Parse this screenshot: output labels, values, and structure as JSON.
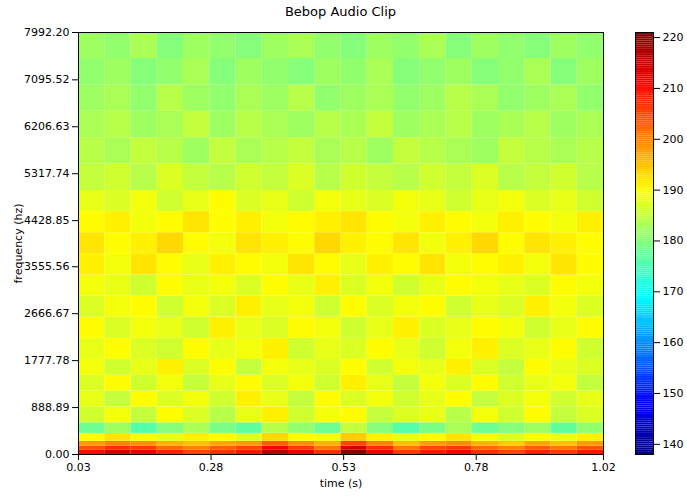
{
  "chart_data": {
    "type": "heatmap",
    "title": "Bebop Audio Clip",
    "x_label": "time (s)",
    "y_label": "frequency (hz)",
    "xlim": [
      0.03,
      1.02
    ],
    "xticks": [
      0.03,
      0.28,
      0.53,
      0.78,
      1.02
    ],
    "ylim": [
      0,
      7992.2
    ],
    "yticks": [
      {
        "value": 0,
        "label": "0.00"
      },
      888.89,
      1777.78,
      2666.67,
      3555.56,
      4428.85,
      5317.74,
      6206.63,
      7095.52,
      {
        "value": 7992.2,
        "label": "7992.20"
      }
    ],
    "time_bins": [
      0.03,
      0.0795,
      0.129,
      0.1785,
      0.228,
      0.2775,
      0.327,
      0.3765,
      0.426,
      0.4755,
      0.525,
      0.5745,
      0.624,
      0.6735,
      0.723,
      0.7725,
      0.822,
      0.8715,
      0.921,
      0.9705,
      1.02
    ],
    "freq_bins": [
      0,
      80,
      160,
      250,
      400,
      600,
      900,
      1200,
      1500,
      1800,
      2200,
      2600,
      3000,
      3400,
      3800,
      4200,
      4600,
      5000,
      5500,
      6000,
      6500,
      7000,
      7500,
      7992.2
    ],
    "cells": [
      [
        210,
        214,
        212,
        208,
        205,
        207,
        209,
        216,
        212,
        207,
        220,
        212,
        206,
        209,
        211,
        207,
        205,
        208,
        206,
        209
      ],
      [
        204,
        207,
        206,
        202,
        200,
        203,
        205,
        211,
        206,
        201,
        214,
        207,
        201,
        205,
        206,
        202,
        200,
        203,
        201,
        204
      ],
      [
        198,
        200,
        199,
        196,
        195,
        197,
        198,
        203,
        199,
        196,
        205,
        200,
        195,
        198,
        199,
        196,
        194,
        197,
        195,
        198
      ],
      [
        190,
        192,
        189,
        188,
        191,
        190,
        187,
        193,
        190,
        189,
        194,
        191,
        188,
        190,
        192,
        189,
        187,
        190,
        188,
        191
      ],
      [
        178,
        182,
        176,
        180,
        183,
        179,
        177,
        184,
        181,
        178,
        185,
        180,
        176,
        179,
        183,
        178,
        180,
        182,
        177,
        181
      ],
      [
        186,
        189,
        185,
        190,
        187,
        184,
        188,
        191,
        186,
        189,
        190,
        185,
        187,
        188,
        184,
        189,
        186,
        190,
        185,
        187
      ],
      [
        188,
        185,
        190,
        187,
        189,
        186,
        191,
        188,
        185,
        190,
        187,
        189,
        186,
        188,
        190,
        185,
        187,
        189,
        186,
        188
      ],
      [
        187,
        190,
        186,
        189,
        185,
        188,
        190,
        187,
        189,
        186,
        191,
        188,
        185,
        189,
        187,
        190,
        186,
        188,
        189,
        185
      ],
      [
        189,
        186,
        188,
        191,
        187,
        190,
        185,
        189,
        188,
        187,
        190,
        186,
        189,
        188,
        191,
        187,
        185,
        190,
        188,
        187
      ],
      [
        188,
        190,
        187,
        186,
        190,
        188,
        189,
        191,
        186,
        188,
        187,
        190,
        188,
        186,
        189,
        191,
        187,
        188,
        190,
        186
      ],
      [
        190,
        187,
        189,
        188,
        186,
        191,
        188,
        187,
        190,
        189,
        186,
        188,
        191,
        187,
        188,
        190,
        189,
        186,
        188,
        190
      ],
      [
        187,
        189,
        190,
        186,
        189,
        187,
        191,
        188,
        189,
        186,
        190,
        187,
        189,
        190,
        186,
        188,
        187,
        191,
        189,
        187
      ],
      [
        189,
        188,
        186,
        190,
        188,
        189,
        187,
        190,
        188,
        191,
        187,
        189,
        186,
        188,
        190,
        189,
        188,
        187,
        190,
        189
      ],
      [
        191,
        189,
        192,
        190,
        188,
        191,
        190,
        189,
        192,
        190,
        188,
        191,
        190,
        192,
        189,
        190,
        191,
        189,
        192,
        190
      ],
      [
        192,
        190,
        191,
        193,
        190,
        189,
        192,
        191,
        190,
        193,
        191,
        190,
        192,
        189,
        191,
        193,
        190,
        192,
        191,
        190
      ],
      [
        190,
        191,
        189,
        190,
        192,
        190,
        191,
        189,
        190,
        191,
        192,
        190,
        189,
        191,
        190,
        189,
        191,
        190,
        189,
        191
      ],
      [
        188,
        187,
        189,
        186,
        188,
        190,
        187,
        188,
        186,
        189,
        188,
        187,
        189,
        188,
        186,
        188,
        189,
        187,
        188,
        186
      ],
      [
        185,
        186,
        184,
        187,
        185,
        184,
        186,
        185,
        187,
        184,
        186,
        185,
        184,
        186,
        185,
        187,
        184,
        185,
        186,
        184
      ],
      [
        184,
        183,
        185,
        184,
        182,
        185,
        183,
        184,
        185,
        183,
        184,
        182,
        185,
        184,
        183,
        182,
        185,
        184,
        183,
        184
      ],
      [
        183,
        184,
        182,
        183,
        185,
        182,
        184,
        183,
        182,
        184,
        183,
        185,
        182,
        183,
        184,
        182,
        183,
        184,
        182,
        183
      ],
      [
        182,
        183,
        181,
        184,
        182,
        181,
        183,
        182,
        184,
        181,
        182,
        183,
        181,
        182,
        184,
        183,
        181,
        182,
        183,
        181
      ],
      [
        181,
        182,
        180,
        181,
        183,
        180,
        182,
        181,
        180,
        182,
        181,
        183,
        180,
        181,
        182,
        180,
        181,
        183,
        180,
        182
      ],
      [
        182,
        181,
        183,
        180,
        182,
        181,
        180,
        182,
        183,
        181,
        180,
        182,
        181,
        183,
        180,
        182,
        181,
        180,
        182,
        181
      ]
    ],
    "colorbar": {
      "range": [
        138,
        221
      ],
      "ticks": [
        140,
        150,
        160,
        170,
        180,
        190,
        200,
        210,
        220
      ]
    }
  }
}
